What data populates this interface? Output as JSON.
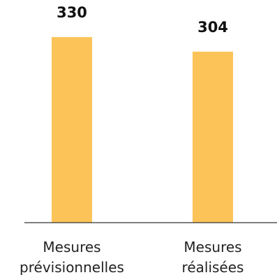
{
  "chart_data": {
    "type": "bar",
    "categories": [
      [
        "Mesures",
        "prévisionnelles"
      ],
      [
        "Mesures",
        "réalisées"
      ]
    ],
    "values": [
      330,
      304
    ],
    "value_labels": [
      "330",
      "304"
    ],
    "title": "",
    "xlabel": "",
    "ylabel": "",
    "ylim": [
      0,
      350
    ],
    "grid": false,
    "legend": "none",
    "bar_color": "#FCC458",
    "axis_color": "#333333",
    "text_color": "#111111"
  }
}
